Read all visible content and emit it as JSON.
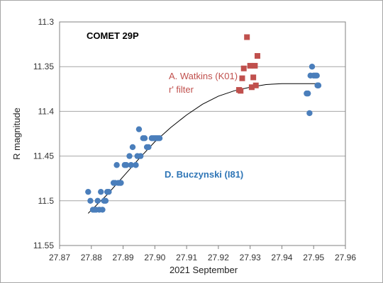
{
  "chart_data": {
    "type": "scatter",
    "title": "COMET 29P",
    "xlabel": "2021 September",
    "ylabel": "R magnitude",
    "xlim": [
      27.87,
      27.96
    ],
    "ylim": [
      11.3,
      11.55
    ],
    "y_reversed": true,
    "x_ticks": [
      "27.87",
      "27.88",
      "27.89",
      "27.90",
      "27.91",
      "27.92",
      "27.93",
      "27.94",
      "27.95",
      "27.96"
    ],
    "y_ticks": [
      "11.3",
      "11.35",
      "11.4",
      "11.45",
      "11.5",
      "11.55"
    ],
    "grid": "horizontal",
    "series": [
      {
        "name": "D. Buczynski (I81)",
        "color": "#4a7ebb",
        "marker": "circle",
        "points": [
          [
            27.879,
            11.49
          ],
          [
            27.8797,
            11.5
          ],
          [
            27.8805,
            11.51
          ],
          [
            27.881,
            11.51
          ],
          [
            27.8815,
            11.51
          ],
          [
            27.882,
            11.5
          ],
          [
            27.8825,
            11.51
          ],
          [
            27.883,
            11.49
          ],
          [
            27.8835,
            11.51
          ],
          [
            27.884,
            11.5
          ],
          [
            27.8845,
            11.5
          ],
          [
            27.885,
            11.49
          ],
          [
            27.8855,
            11.49
          ],
          [
            27.887,
            11.48
          ],
          [
            27.8875,
            11.48
          ],
          [
            27.888,
            11.46
          ],
          [
            27.8885,
            11.48
          ],
          [
            27.889,
            11.48
          ],
          [
            27.8893,
            11.48
          ],
          [
            27.8905,
            11.46
          ],
          [
            27.891,
            11.46
          ],
          [
            27.892,
            11.45
          ],
          [
            27.8925,
            11.46
          ],
          [
            27.893,
            11.44
          ],
          [
            27.894,
            11.46
          ],
          [
            27.8945,
            11.45
          ],
          [
            27.895,
            11.42
          ],
          [
            27.8955,
            11.45
          ],
          [
            27.8963,
            11.43
          ],
          [
            27.8968,
            11.43
          ],
          [
            27.8975,
            11.44
          ],
          [
            27.898,
            11.44
          ],
          [
            27.899,
            11.43
          ],
          [
            27.8995,
            11.43
          ],
          [
            27.9,
            11.43
          ],
          [
            27.9005,
            11.43
          ],
          [
            27.901,
            11.43
          ],
          [
            27.9015,
            11.43
          ],
          [
            27.9478,
            11.38
          ],
          [
            27.9482,
            11.38
          ],
          [
            27.9487,
            11.402
          ],
          [
            27.949,
            11.36
          ],
          [
            27.9495,
            11.35
          ],
          [
            27.95,
            11.36
          ],
          [
            27.9505,
            11.36
          ],
          [
            27.951,
            11.36
          ],
          [
            27.9512,
            11.371
          ],
          [
            27.9515,
            11.371
          ]
        ]
      },
      {
        "name": "A. Watkins (K01)",
        "color": "#c0504d",
        "marker": "square",
        "points": [
          [
            27.9265,
            11.376
          ],
          [
            27.927,
            11.377
          ],
          [
            27.9275,
            11.363
          ],
          [
            27.928,
            11.352
          ],
          [
            27.929,
            11.317
          ],
          [
            27.93,
            11.349
          ],
          [
            27.9305,
            11.373
          ],
          [
            27.931,
            11.362
          ],
          [
            27.9315,
            11.349
          ],
          [
            27.9318,
            11.371
          ],
          [
            27.9323,
            11.338
          ]
        ]
      }
    ],
    "trendline": {
      "type": "polynomial",
      "color": "#000000",
      "x_range": [
        27.879,
        27.9515
      ],
      "points": [
        [
          27.879,
          11.514
        ],
        [
          27.885,
          11.493
        ],
        [
          27.89,
          11.473
        ],
        [
          27.895,
          11.453
        ],
        [
          27.9,
          11.434
        ],
        [
          27.905,
          11.418
        ],
        [
          27.91,
          11.404
        ],
        [
          27.915,
          11.392
        ],
        [
          27.92,
          11.383
        ],
        [
          27.925,
          11.377
        ],
        [
          27.93,
          11.373
        ],
        [
          27.935,
          11.37
        ],
        [
          27.94,
          11.369
        ],
        [
          27.945,
          11.369
        ],
        [
          27.95,
          11.369
        ],
        [
          27.9515,
          11.369
        ]
      ]
    },
    "annotations": [
      {
        "text": "A. Watkins (K01)",
        "color": "#c0504d"
      },
      {
        "text": "r' filter",
        "color": "#c0504d"
      },
      {
        "text": "D. Buczynski (I81)",
        "color": "#2e75b6"
      }
    ]
  }
}
